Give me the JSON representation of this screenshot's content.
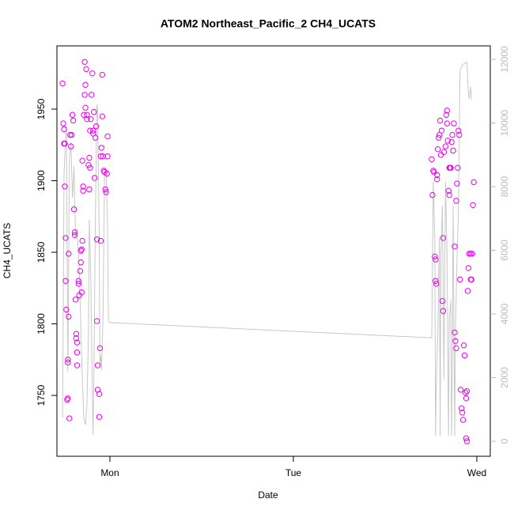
{
  "chart_data": {
    "type": "scatter",
    "title": "ATOM2 Northeast_Pacific_2 CH4_UCATS",
    "x_label": "Date",
    "y_label": "CH4_UCATS",
    "xlim": [
      -6.93,
      49.76
    ],
    "xticks": [
      {
        "value": 0,
        "label": "Mon"
      },
      {
        "value": 24,
        "label": "Tue"
      },
      {
        "value": 48,
        "label": "Wed"
      }
    ],
    "ylim": [
      1707.5,
      1994.2
    ],
    "yticks": [
      1750,
      1800,
      1850,
      1900,
      1950
    ],
    "y2lim": [
      -472,
      12422
    ],
    "y2ticks": [
      0,
      2000,
      4000,
      6000,
      8000,
      10000,
      12000
    ],
    "series": [
      {
        "color": "#ee00ee",
        "x": [
          -6.2,
          -6.1,
          -6.0,
          -6.0,
          -5.9,
          -5.9,
          -5.8,
          -5.8,
          -5.7,
          -5.6,
          -5.5,
          -5.5,
          -5.5,
          -5.4,
          -5.4,
          -5.3,
          -5.2,
          -5.1,
          -5.0,
          -4.9,
          -4.8,
          -4.7,
          -4.6,
          -4.6,
          -4.5,
          -4.4,
          -4.4,
          -4.3,
          -4.3,
          -4.3,
          -4.1,
          -4.1,
          -4.0,
          -3.9,
          -3.8,
          -3.8,
          -3.7,
          -3.7,
          -3.6,
          -3.6,
          -3.5,
          -3.5,
          -3.4,
          -3.3,
          -3.3,
          -3.2,
          -3.2,
          -3.1,
          -3.0,
          -3.0,
          -2.8,
          -2.7,
          -2.7,
          -2.6,
          -2.6,
          -2.5,
          -2.4,
          -2.3,
          -2.2,
          -2.2,
          -2.1,
          -2.0,
          -1.9,
          -1.8,
          -1.7,
          -1.7,
          -1.6,
          -1.6,
          -1.4,
          -1.4,
          -1.3,
          -1.2,
          -1.2,
          -1.1,
          -1.0,
          -1.0,
          -0.9,
          -0.8,
          -0.7,
          -0.6,
          -0.5,
          -0.4,
          -0.3,
          -0.3,
          42.1,
          42.2,
          42.3,
          42.4,
          42.5,
          42.6,
          42.6,
          42.7,
          42.8,
          42.8,
          42.9,
          43.0,
          43.1,
          43.2,
          43.3,
          43.4,
          43.5,
          43.6,
          43.6,
          43.7,
          43.9,
          44.0,
          44.1,
          44.1,
          44.2,
          44.3,
          44.4,
          44.4,
          44.5,
          44.6,
          44.7,
          44.8,
          44.9,
          45.0,
          45.1,
          45.1,
          45.2,
          45.3,
          45.3,
          45.4,
          45.5,
          45.6,
          45.7,
          45.8,
          45.9,
          46.0,
          46.1,
          46.2,
          46.3,
          46.4,
          46.5,
          46.6,
          46.7,
          46.8,
          46.9,
          47.0,
          47.2,
          47.2,
          47.3,
          47.4,
          47.5,
          47.6,
          46.6,
          46.7
        ],
        "values": [
          1968,
          1940,
          1936,
          1926,
          1926,
          1896,
          1860,
          1830,
          1810,
          1747,
          1773,
          1775,
          1748,
          1805,
          1849,
          1734,
          1932,
          1924,
          1932,
          1946,
          1942,
          1880,
          1862,
          1864,
          1817,
          1793,
          1790,
          1787,
          1771,
          1780,
          1828,
          1830,
          1820,
          1837,
          1843,
          1851,
          1852,
          1822,
          1858,
          1914,
          1896,
          1893,
          1946,
          1960,
          1983,
          1967,
          1951,
          1978,
          1943,
          1946,
          1911,
          1916,
          1894,
          1909,
          1935,
          1943,
          1960,
          1975,
          1935,
          1933,
          1948,
          1902,
          1930,
          1938,
          1859,
          1802,
          1771,
          1754,
          1751,
          1735,
          1783,
          1858,
          1917,
          1923,
          1974,
          1945,
          1917,
          1907,
          1906,
          1894,
          1892,
          1905,
          1931,
          1917,
          1915,
          1890,
          1907,
          1906,
          1847,
          1845,
          1830,
          1828,
          1904,
          1901,
          1922,
          1930,
          1932,
          1942,
          1918,
          1935,
          1816,
          1809,
          1860,
          1920,
          1924,
          1946,
          1940,
          1949,
          1928,
          1893,
          1890,
          1909,
          1909,
          1909,
          1927,
          1932,
          1921,
          1940,
          1854,
          1794,
          1788,
          1783,
          1886,
          1898,
          1909,
          1935,
          1932,
          1831,
          1754,
          1741,
          1738,
          1733,
          1785,
          1778,
          1752,
          1748,
          1753,
          1823,
          1839,
          1849,
          1849,
          1831,
          1831,
          1849,
          1883,
          1899,
          1720,
          1718
        ]
      },
      {
        "type": "line",
        "axis": "y2",
        "color": "#c8c8c8",
        "x": [
          -6.2,
          -6.0,
          -5.7,
          -5.5,
          -5.3,
          -5.1,
          -4.9,
          -4.7,
          -4.5,
          -4.3,
          -4.0,
          -3.8,
          -3.6,
          -3.4,
          -3.2,
          -3.0,
          -2.8,
          -2.7,
          -2.5,
          -2.3,
          -2.2,
          -2.1,
          -1.9,
          -1.7,
          -1.6,
          -1.4,
          -1.3,
          -1.2,
          -1.1,
          -0.9,
          -0.7,
          -0.5,
          -0.3,
          -0.2,
          -0.1,
          42.1,
          42.3,
          42.5,
          42.6,
          42.7,
          42.9,
          43.1,
          43.2,
          43.3,
          43.5,
          43.7,
          43.9,
          44.1,
          44.3,
          44.4,
          44.6,
          44.7,
          44.8,
          44.9,
          45.1,
          45.2,
          45.4,
          45.6,
          45.8,
          46.1,
          46.7,
          46.9,
          47.0,
          47.2,
          47.3
        ],
        "values": [
          745,
          8400,
          9890,
          2190,
          8890,
          9390,
          7650,
          8640,
          6410,
          6660,
          5420,
          3430,
          1940,
          700,
          520,
          1190,
          3430,
          6960,
          5170,
          1440,
          200,
          1940,
          6960,
          10580,
          10380,
          6410,
          2430,
          2680,
          2240,
          3920,
          8400,
          8520,
          6660,
          3800,
          3730,
          3250,
          8150,
          6410,
          170,
          1940,
          3430,
          6410,
          170,
          5910,
          7400,
          1940,
          8150,
          5910,
          170,
          3920,
          4420,
          170,
          2430,
          7400,
          170,
          3430,
          5660,
          7400,
          11630,
          11820,
          11920,
          10880,
          10760,
          11130,
          10730
        ]
      }
    ]
  }
}
